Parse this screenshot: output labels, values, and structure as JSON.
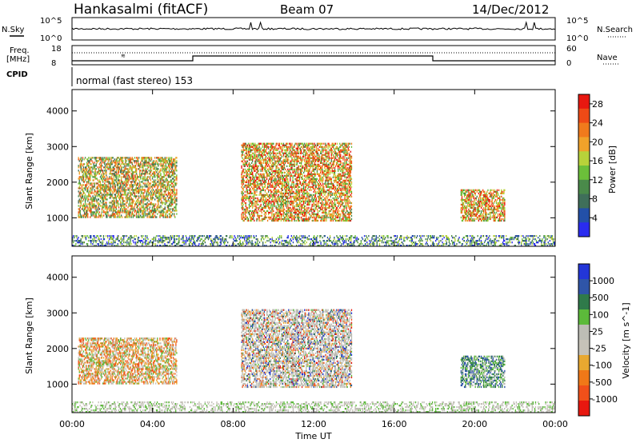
{
  "header": {
    "station": "Hankasalmi (fitACF)",
    "beam": "Beam 07",
    "date": "14/Dec/2012"
  },
  "top_panels": {
    "nsky_label": "N.Sky",
    "nsky_top": "10^5",
    "nsky_bottom": "10^0",
    "nsearch_label": "N.Search",
    "nsearch_top": "10^5",
    "nsearch_bottom": "10^0",
    "freq_label": "Freq.",
    "freq_unit": "[MHz]",
    "freq_top": "18",
    "freq_bottom": "8",
    "nave_label": "Nave",
    "nave_top": "60",
    "nave_bottom": "0",
    "cpid_label": "CPID",
    "cpid_text": "normal (fast stereo) 153"
  },
  "colors": {
    "power_scale": [
      "#2a2cf0",
      "#2350a8",
      "#3f6f5a",
      "#4a8a4a",
      "#6cbf3a",
      "#b8d23a",
      "#f0a22a",
      "#f07a1c",
      "#ee4a16",
      "#e81810"
    ],
    "velocity_scale": [
      "#2336d8",
      "#2f55a8",
      "#2f7a4a",
      "#5cba3a",
      "#bdbdb5",
      "#c6c2b8",
      "#e8a830",
      "#f07818",
      "#f0501a",
      "#e81810"
    ],
    "ground_scatter": "#bdbdb5"
  },
  "chart_data": [
    {
      "type": "heatmap",
      "name_of_panel": "power",
      "xlabel": "",
      "ylabel": "Slant Range [km]",
      "x_ticks": [
        "00:00",
        "04:00",
        "08:00",
        "12:00",
        "16:00",
        "20:00",
        "00:00"
      ],
      "y_ticks": [
        "1000",
        "2000",
        "3000",
        "4000"
      ],
      "ylim": [
        200,
        4600
      ],
      "colorbar": {
        "title": "Power [dB]",
        "ticks": [
          "4",
          "8",
          "12",
          "16",
          "20",
          "24",
          "28"
        ],
        "range": [
          0,
          30
        ]
      },
      "regions": [
        {
          "t_start": 0.3,
          "t_end": 5.2,
          "r_min": 1000,
          "r_max": 2700,
          "level": "medium-high"
        },
        {
          "t_start": 8.4,
          "t_end": 13.9,
          "r_min": 900,
          "r_max": 3100,
          "level": "high"
        },
        {
          "t_start": 19.3,
          "t_end": 21.5,
          "r_min": 900,
          "r_max": 1800,
          "level": "high"
        },
        {
          "t_start": 0,
          "t_end": 24,
          "r_min": 200,
          "r_max": 500,
          "level": "low"
        }
      ]
    },
    {
      "type": "heatmap",
      "name_of_panel": "velocity",
      "xlabel": "Time UT",
      "ylabel": "Slant Range [km]",
      "x_ticks": [
        "00:00",
        "04:00",
        "08:00",
        "12:00",
        "16:00",
        "20:00",
        "00:00"
      ],
      "y_ticks": [
        "1000",
        "2000",
        "3000",
        "4000"
      ],
      "ylim": [
        200,
        4600
      ],
      "colorbar": {
        "title": "Velocity [m s^-1]",
        "ticks": [
          "1000",
          "500",
          "100",
          "25",
          "-25",
          "-100",
          "-500",
          "-1000"
        ]
      },
      "regions": [
        {
          "t_start": 0.3,
          "t_end": 5.2,
          "r_min": 1000,
          "r_max": 2300,
          "level": "negative"
        },
        {
          "t_start": 8.4,
          "t_end": 13.9,
          "r_min": 900,
          "r_max": 3100,
          "level": "mixed"
        },
        {
          "t_start": 19.3,
          "t_end": 21.5,
          "r_min": 900,
          "r_max": 1800,
          "level": "positive"
        },
        {
          "t_start": 0,
          "t_end": 24,
          "r_min": 200,
          "r_max": 500,
          "level": "low-positive"
        }
      ]
    }
  ]
}
